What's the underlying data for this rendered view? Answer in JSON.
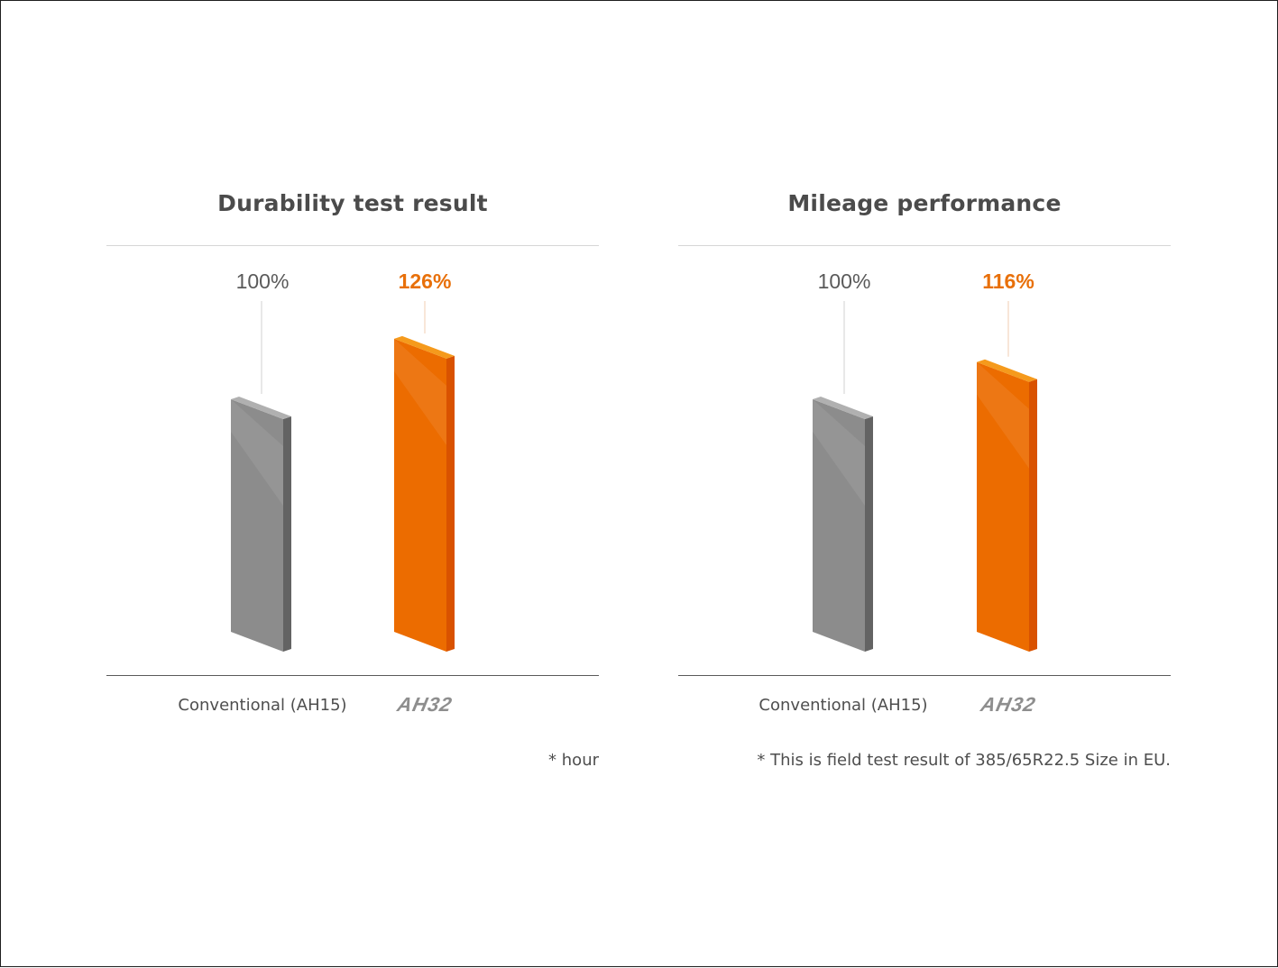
{
  "colors": {
    "conventional": "#8c8c8c",
    "conventional_side": "#636363",
    "conventional_top": "#b0b0b0",
    "product": "#ec6c00",
    "product_side": "#d95200",
    "product_top": "#f59a1c",
    "leader": "#d9d9d9",
    "leader_product": "#f3d5bd"
  },
  "charts": [
    {
      "title": "Durability test result",
      "footnote": "* hour",
      "conventional_value_label": "100%",
      "product_value_label": "126%",
      "conventional_category": "Conventional (AH15)",
      "product_category": "AH32"
    },
    {
      "title": "Mileage performance",
      "footnote": "* This is field test result of 385/65R22.5 Size in EU.",
      "conventional_value_label": "100%",
      "product_value_label": "116%",
      "conventional_category": "Conventional (AH15)",
      "product_category": "AH32"
    }
  ],
  "chart_data": [
    {
      "type": "bar",
      "title": "Durability test result",
      "categories": [
        "Conventional (AH15)",
        "AH32"
      ],
      "values": [
        100,
        126
      ],
      "unit": "%",
      "xlabel": "",
      "ylabel": "",
      "grid": false
    },
    {
      "type": "bar",
      "title": "Mileage performance",
      "categories": [
        "Conventional (AH15)",
        "AH32"
      ],
      "values": [
        100,
        116
      ],
      "unit": "%",
      "xlabel": "",
      "ylabel": "",
      "grid": false
    }
  ]
}
